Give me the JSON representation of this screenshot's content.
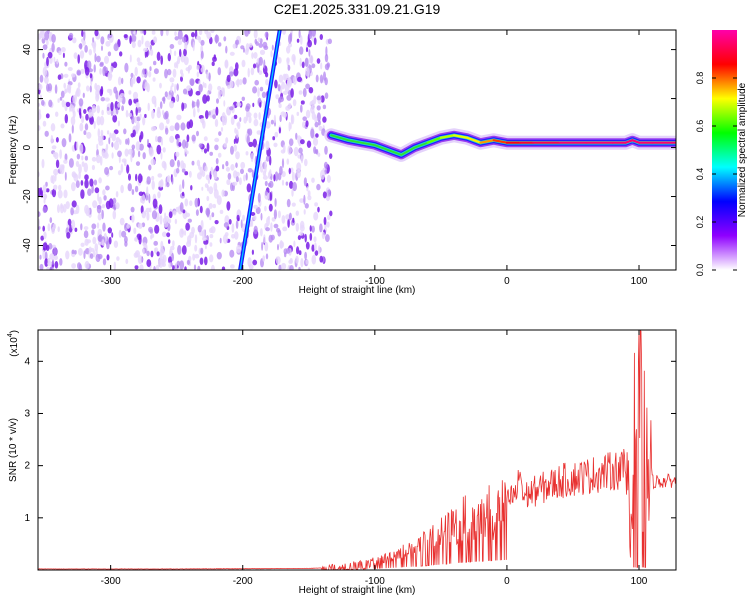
{
  "title": "C2E1.2025.331.09.21.G19",
  "chart_data": [
    {
      "type": "heatmap",
      "name": "spectrogram",
      "xlabel": "Height of straight line (km)",
      "ylabel": "Frequency (Hz)",
      "xlim": [
        -355,
        128
      ],
      "ylim": [
        -50,
        48
      ],
      "xticks": [
        -300,
        -200,
        -100,
        0,
        100
      ],
      "xtick_labels": [
        "-300",
        "-200",
        "-100",
        "0",
        "100"
      ],
      "yticks": [
        -40,
        -20,
        0,
        20,
        40
      ],
      "ytick_labels": [
        "-40",
        "-20",
        "0",
        "20",
        "40"
      ],
      "colorbar": {
        "label": "Normalized spectral amplitude",
        "range": [
          0.0,
          1.0
        ],
        "ticks": [
          0.0,
          0.2,
          0.4,
          0.6,
          0.8
        ],
        "tick_labels": [
          "0.0",
          "0.2",
          "0.4",
          "0.6",
          "0.8"
        ],
        "colormap": [
          "#ffffff",
          "#8f00ff",
          "#0000ff",
          "#00ffff",
          "#00ff00",
          "#ffff00",
          "#ff0000",
          "#ff00aa"
        ]
      },
      "noise_region": {
        "x": [
          -355,
          -133
        ],
        "amplitude": 0.15
      },
      "signal_trace": {
        "x": [
          -133,
          -120,
          -110,
          -100,
          -90,
          -80,
          -70,
          -60,
          -50,
          -40,
          -30,
          -20,
          -10,
          0,
          10,
          20,
          40,
          60,
          80,
          90,
          95,
          100,
          110,
          128
        ],
        "y": [
          5,
          3,
          2,
          1,
          -1,
          -3,
          0,
          2,
          4,
          5,
          4,
          2,
          3,
          2,
          2,
          2,
          2,
          2,
          2,
          2,
          3,
          2,
          2,
          2
        ],
        "amplitude": [
          0.3,
          0.35,
          0.4,
          0.45,
          0.45,
          0.5,
          0.55,
          0.6,
          0.65,
          0.7,
          0.7,
          0.75,
          0.8,
          0.85,
          0.9,
          0.9,
          0.95,
          0.95,
          0.95,
          0.95,
          0.95,
          0.95,
          0.95,
          0.95
        ]
      },
      "diagonal_line": {
        "x": [
          -202,
          -172
        ],
        "y": [
          -50,
          48
        ],
        "amplitude": 0.25
      }
    },
    {
      "type": "line",
      "name": "snr",
      "xlabel": "Height of straight line (km)",
      "ylabel": "SNR (10 * v/v)",
      "scale_label": "(x10",
      "scale_exponent": "4",
      "xlim": [
        -355,
        128
      ],
      "ylim": [
        0,
        4.6
      ],
      "xticks": [
        -300,
        -200,
        -100,
        0,
        100
      ],
      "xtick_labels": [
        "-300",
        "-200",
        "-100",
        "0",
        "100"
      ],
      "yticks": [
        1,
        2,
        3,
        4
      ],
      "ytick_labels": [
        "1",
        "2",
        "3",
        "4"
      ],
      "color": "#e8302f",
      "series": [
        {
          "name": "SNR",
          "x": [
            -355,
            -250,
            -150,
            -130,
            -110,
            -100,
            -90,
            -80,
            -70,
            -60,
            -50,
            -40,
            -30,
            -20,
            -10,
            0,
            8,
            10,
            12,
            20,
            30,
            40,
            50,
            60,
            70,
            80,
            90,
            95,
            98,
            100,
            102,
            105,
            110,
            120,
            128
          ],
          "y": [
            0.02,
            0.02,
            0.03,
            0.05,
            0.1,
            0.15,
            0.25,
            0.35,
            0.45,
            0.55,
            0.7,
            0.85,
            1.0,
            1.1,
            1.2,
            1.3,
            1.5,
            2.0,
            1.4,
            1.5,
            1.6,
            1.7,
            1.75,
            1.8,
            1.85,
            1.9,
            1.95,
            2.3,
            3.5,
            4.5,
            2.5,
            1.8,
            1.7,
            1.7,
            1.72
          ]
        }
      ]
    }
  ]
}
